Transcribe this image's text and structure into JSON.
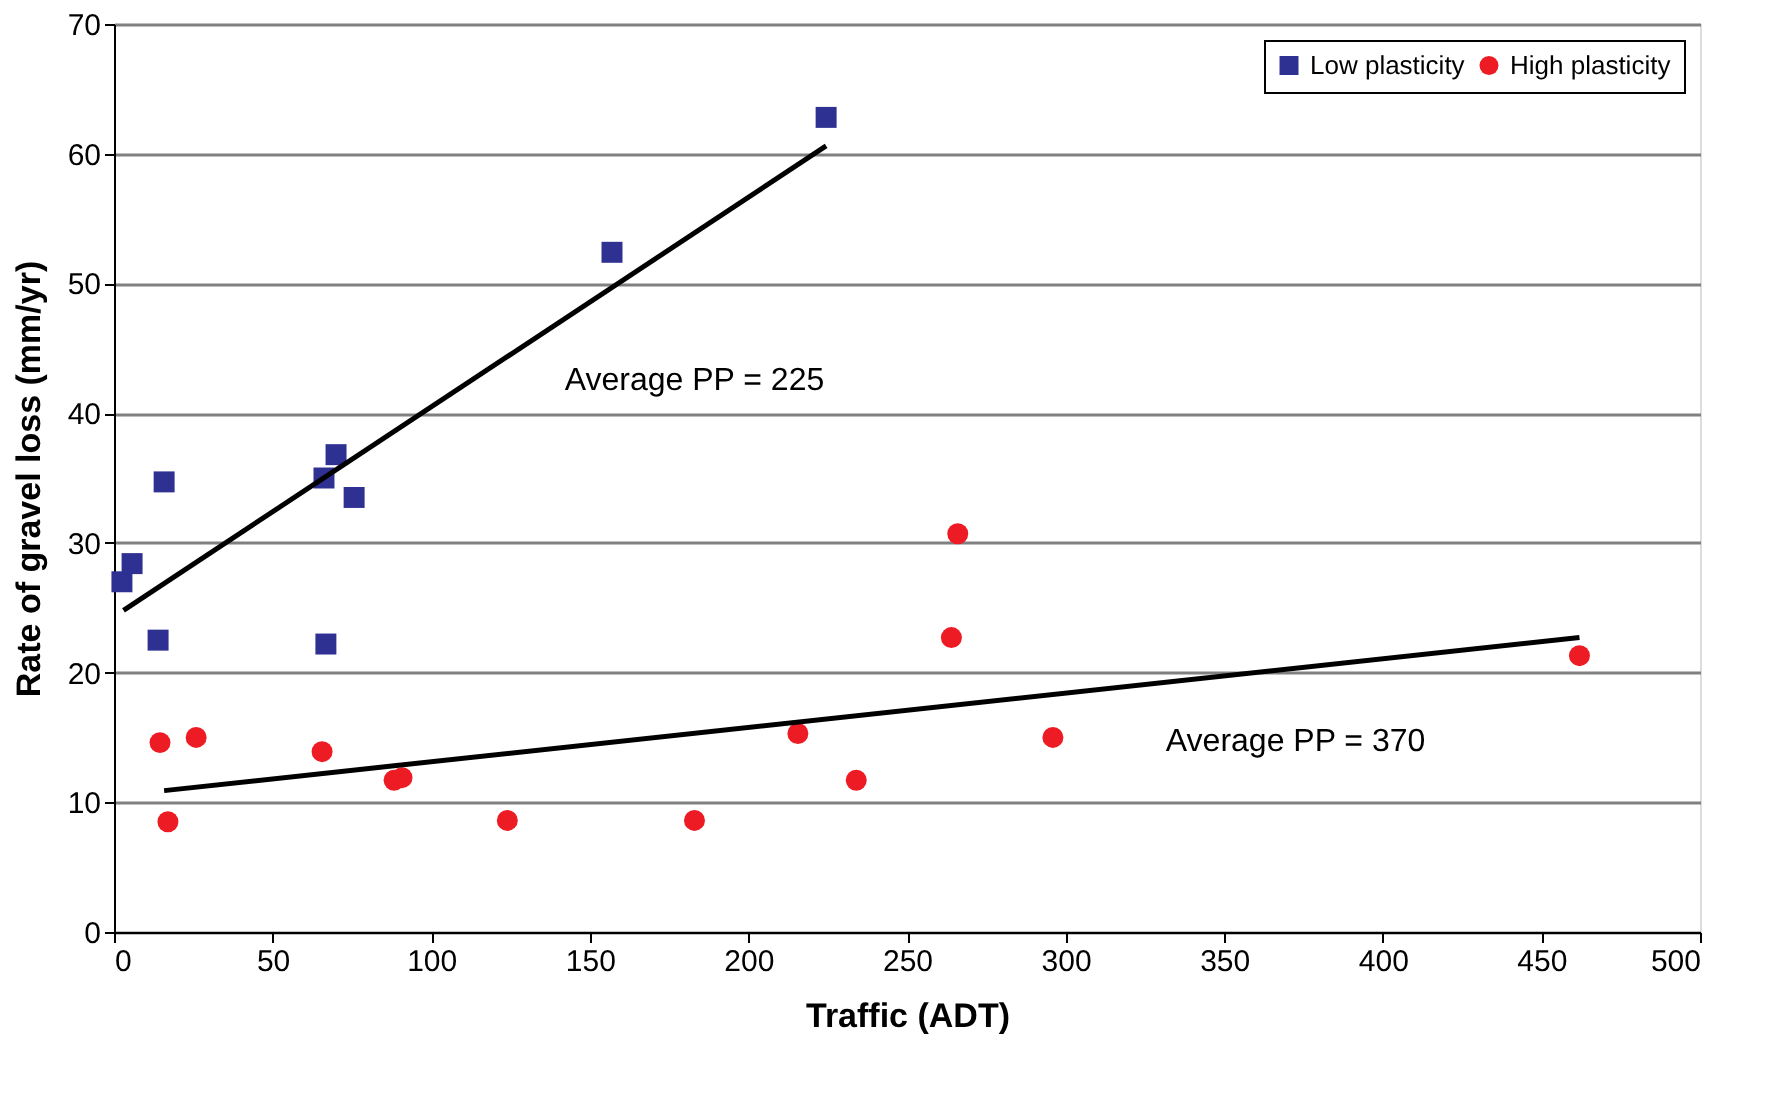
{
  "chart_data": {
    "type": "scatter",
    "xlabel": "Traffic (ADT)",
    "ylabel": "Rate of gravel loss (mm/yr)",
    "xlim": [
      0,
      500
    ],
    "xticks": [
      0,
      50,
      100,
      150,
      200,
      250,
      300,
      350,
      400,
      450,
      500
    ],
    "ylim": [
      0,
      70
    ],
    "yticks": [
      0,
      10,
      20,
      30,
      40,
      50,
      60,
      70
    ],
    "grid": "y",
    "legend": "top right",
    "series": [
      {
        "name": "Low  plasticity",
        "color": "#2e3192",
        "marker": "square",
        "x": [
          2.5,
          5.7,
          15.8,
          13.9,
          66.8,
          66.2,
          70,
          75.7,
          157,
          224.5
        ],
        "values": [
          27.0,
          28.4,
          34.7,
          22.5,
          22.2,
          35.0,
          36.8,
          33.5,
          52.4,
          62.8
        ]
      },
      {
        "name": "High plasticity",
        "color": "#ed1c24",
        "marker": "circle",
        "x": [
          14.5,
          17,
          25.9,
          65.6,
          88.3,
          90.8,
          124,
          183,
          215.6,
          234,
          264,
          266,
          296,
          462
        ],
        "values": [
          14.6,
          8.5,
          15.0,
          13.9,
          11.7,
          11.9,
          8.6,
          8.6,
          15.3,
          11.7,
          22.7,
          30.7,
          15.0,
          21.3
        ]
      },
      {
        "type": "line",
        "color": "#000000",
        "x": [
          3,
          224.5
        ],
        "values": [
          24.8,
          60.6
        ]
      },
      {
        "type": "line",
        "color": "#000000",
        "x": [
          15.8,
          462
        ],
        "values": [
          10.9,
          22.7
        ]
      }
    ],
    "annotations": [
      "Average PP = 225",
      "Average PP = 370"
    ]
  }
}
